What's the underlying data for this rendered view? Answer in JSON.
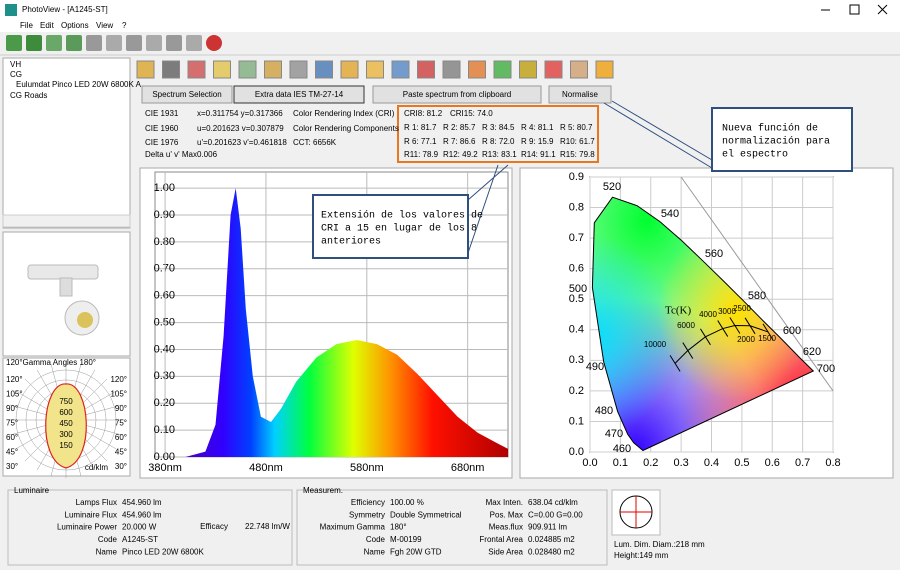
{
  "window": {
    "title": "PhotoView - [A1245-ST]",
    "menu": [
      "File",
      "Edit",
      "Options",
      "View",
      "?"
    ]
  },
  "tree": [
    "VH",
    "CG",
    "Eulumdat Pinco LED 20W 6800K A",
    "CG Roads"
  ],
  "polar": {
    "header": "120°Gamma Angles   180°",
    "left": [
      "120°",
      "105°",
      "90°",
      "75°",
      "60°",
      "45°",
      "30°"
    ],
    "right": [
      "120°",
      "105°",
      "90°",
      "75°",
      "60°",
      "45°",
      "30°"
    ],
    "rings": [
      "750",
      "600",
      "450",
      "300",
      "150"
    ],
    "unit": "cd/klm"
  },
  "buttons": [
    "Spectrum Selection",
    "Extra data IES TM-27-14",
    "Paste spectrum from clipboard",
    "Normalise"
  ],
  "colorimetry": [
    [
      "CIE 1931",
      "x=0.311754 y=0.317366"
    ],
    [
      "CIE 1960",
      "u=0.201623 v=0.307879"
    ],
    [
      "CIE 1976",
      "u'=0.201623 v'=0.461818"
    ],
    [
      "Delta u' v' Max",
      "0.006"
    ]
  ],
  "cri_labels": [
    "Color Rendering Index (CRI)",
    "Color Rendering Components",
    "CCT: 6656K"
  ],
  "cri_box": [
    [
      "CRI8: 81.2",
      "CRI15: 74.0"
    ],
    [
      "R 1: 81.7",
      "R 2: 85.7",
      "R 3: 84.5",
      "R 4: 81.1",
      "R 5: 80.7"
    ],
    [
      "R 6: 77.1",
      "R 7: 86.6",
      "R 8: 72.0",
      "R 9: 15.9",
      "R10: 61.7"
    ],
    [
      "R11: 78.9",
      "R12: 49.2",
      "R13: 83.1",
      "R14: 91.1",
      "R15: 79.8"
    ]
  ],
  "annotations": [
    [
      "Extensión de los valores de",
      "CRI a 15 en lugar de los 8",
      "anteriores"
    ],
    [
      "Nueva función de",
      "normalización para",
      "el espectro"
    ]
  ],
  "spectrum": {
    "xlim": [
      370,
      720
    ],
    "ylim": [
      0,
      1.06
    ],
    "xticks": [
      {
        "value": 380,
        "label": "380nm"
      },
      {
        "value": 480,
        "label": "480nm"
      },
      {
        "value": 580,
        "label": "580nm"
      },
      {
        "value": 680,
        "label": "680nm"
      }
    ],
    "yticks": [
      {
        "value": 0,
        "label": "0.00"
      },
      {
        "value": 0.1,
        "label": "0.10"
      },
      {
        "value": 0.2,
        "label": "0.20"
      },
      {
        "value": 0.3,
        "label": "0.30"
      },
      {
        "value": 0.4,
        "label": "0.40"
      },
      {
        "value": 0.5,
        "label": "0.50"
      },
      {
        "value": 0.6,
        "label": "0.60"
      },
      {
        "value": 0.7,
        "label": "0.70"
      },
      {
        "value": 0.8,
        "label": "0.80"
      },
      {
        "value": 0.9,
        "label": "0.90"
      },
      {
        "value": 1,
        "label": "1.00"
      }
    ],
    "x": [
      400,
      420,
      430,
      438,
      445,
      450,
      455,
      460,
      467,
      475,
      485,
      495,
      510,
      530,
      550,
      570,
      590,
      610,
      630,
      650,
      670,
      690,
      710,
      720
    ],
    "values": [
      0,
      0.02,
      0.12,
      0.45,
      0.9,
      1,
      0.85,
      0.55,
      0.3,
      0.15,
      0.13,
      0.18,
      0.28,
      0.37,
      0.42,
      0.435,
      0.42,
      0.38,
      0.31,
      0.23,
      0.15,
      0.09,
      0.05,
      0.03
    ]
  },
  "cie": {
    "xlim": [
      0,
      0.8
    ],
    "ylim": [
      0,
      0.9
    ],
    "xticks": [
      {
        "value": 0,
        "label": "0.0"
      },
      0.1,
      0.2,
      0.3,
      0.4,
      0.5,
      0.6,
      0.7,
      0.8
    ],
    "yticks": [
      {
        "value": 0,
        "label": "0.0"
      },
      0.1,
      0.2,
      0.3,
      0.4,
      0.5,
      0.6,
      0.7,
      0.8,
      0.9
    ],
    "wavelengths": [
      "520",
      "540",
      "560",
      "580",
      "600",
      "620",
      "700",
      "500",
      "490",
      "480",
      "470",
      "460"
    ],
    "tc_label": "Tc(K)",
    "temperatures": [
      "10000",
      "6000",
      "4000",
      "3000",
      "2500",
      "2000",
      "1500"
    ]
  },
  "luminaire": {
    "title": "Luminaire",
    "rows": [
      [
        "Lamps Flux",
        "454.960 lm"
      ],
      [
        "Luminaire Flux",
        "454.960 lm"
      ],
      [
        "Luminaire Power",
        "20.000 W"
      ],
      [
        "Code",
        "A1245-ST"
      ],
      [
        "Name",
        "Pinco LED 20W 6800K"
      ]
    ],
    "efficacy": [
      "Efficacy",
      "22.748 lm/W"
    ]
  },
  "measurement": {
    "title": "Measurem.",
    "left": [
      [
        "Efficiency",
        "100.00 %"
      ],
      [
        "Symmetry",
        "Double Symmetrical"
      ],
      [
        "Maximum Gamma",
        "180°"
      ],
      [
        "Code",
        "M-00199"
      ],
      [
        "Name",
        "Fgh 20W GTD"
      ]
    ],
    "right": [
      [
        "Max Inten.",
        "638.04 cd/klm"
      ],
      [
        "Pos. Max",
        "C=0.00 G=0.00"
      ],
      [
        "Meas.flux",
        "909.911 lm"
      ],
      [
        "Frontal Area",
        "0.024885 m2"
      ],
      [
        "Side Area",
        "0.028480 m2"
      ]
    ]
  },
  "dimensions": [
    "Lum. Dim. Diam.:218 mm",
    "Height:149 mm"
  ]
}
